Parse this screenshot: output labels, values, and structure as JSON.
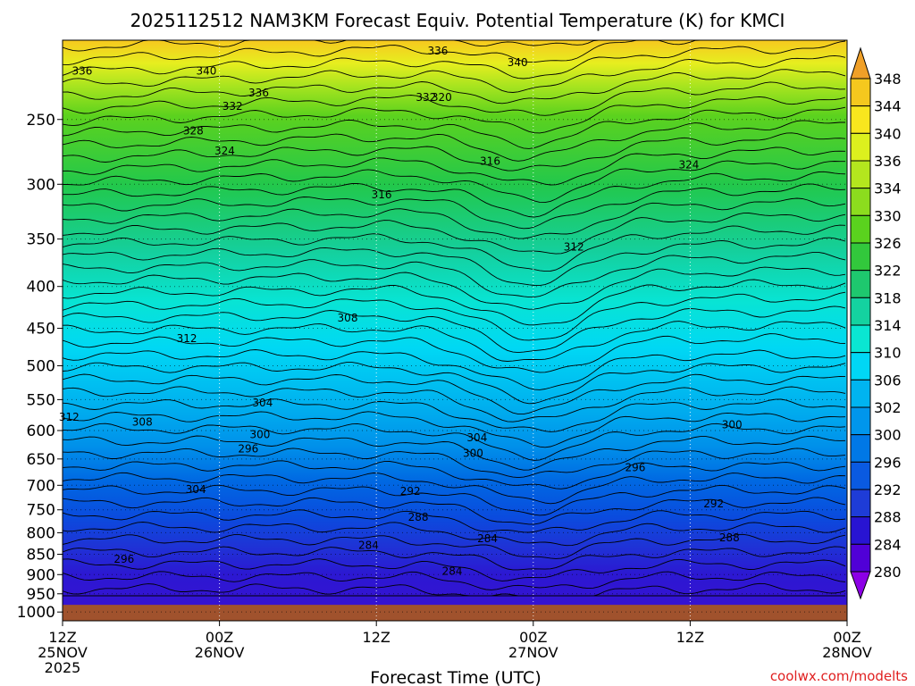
{
  "chart_data": {
    "type": "heatmap",
    "title": "2025112512 NAM3KM Forecast Equiv. Potential Temperature (K) for KMCI",
    "xlabel": "Forecast Time (UTC)",
    "ylabel": "",
    "x_ticks": [
      {
        "hour": 0,
        "lines": [
          "12Z",
          "25NOV",
          "2025"
        ]
      },
      {
        "hour": 12,
        "lines": [
          "00Z",
          "26NOV"
        ]
      },
      {
        "hour": 24,
        "lines": [
          "12Z"
        ]
      },
      {
        "hour": 36,
        "lines": [
          "00Z",
          "27NOV"
        ]
      },
      {
        "hour": 48,
        "lines": [
          "12Z"
        ]
      },
      {
        "hour": 60,
        "lines": [
          "00Z",
          "28NOV"
        ]
      }
    ],
    "xlim": [
      0,
      60
    ],
    "y_ticks": [
      250,
      300,
      350,
      400,
      450,
      500,
      550,
      600,
      650,
      700,
      750,
      800,
      850,
      900,
      950,
      1000
    ],
    "ylim": [
      1025,
      200
    ],
    "ylog": true,
    "grid": true,
    "colorbar": {
      "labels": [
        348,
        344,
        340,
        336,
        334,
        330,
        326,
        322,
        318,
        314,
        310,
        306,
        302,
        300,
        296,
        292,
        288,
        284,
        280
      ],
      "colors": [
        "#f0a028",
        "#f5c81e",
        "#f8e61e",
        "#dcf01e",
        "#b4e61e",
        "#8cdc1e",
        "#5ad21e",
        "#32c83c",
        "#1ec86e",
        "#14d2a0",
        "#0ae6d2",
        "#00d7f5",
        "#00b4f0",
        "#0096ec",
        "#0078e6",
        "#0a5ae1",
        "#1e3cd7",
        "#2814d2",
        "#5000d7",
        "#8c00e6"
      ]
    },
    "contour_labels": [
      {
        "t": 1.5,
        "p": 218,
        "v": "336"
      },
      {
        "t": 11,
        "p": 218,
        "v": "340"
      },
      {
        "t": 15,
        "p": 232,
        "v": "336"
      },
      {
        "t": 13,
        "p": 241,
        "v": "332"
      },
      {
        "t": 10,
        "p": 258,
        "v": "328"
      },
      {
        "t": 12.4,
        "p": 273,
        "v": "324"
      },
      {
        "t": 29,
        "p": 235,
        "v": "320"
      },
      {
        "t": 27.8,
        "p": 235,
        "v": "332"
      },
      {
        "t": 28.7,
        "p": 206,
        "v": "336"
      },
      {
        "t": 34.8,
        "p": 213,
        "v": "340"
      },
      {
        "t": 24.4,
        "p": 309,
        "v": "316"
      },
      {
        "t": 32.7,
        "p": 281,
        "v": "316"
      },
      {
        "t": 47.9,
        "p": 284,
        "v": "324"
      },
      {
        "t": 39.1,
        "p": 358,
        "v": "312"
      },
      {
        "t": 9.5,
        "p": 463,
        "v": "312"
      },
      {
        "t": 21.8,
        "p": 437,
        "v": "308"
      },
      {
        "t": 0.5,
        "p": 578,
        "v": "312"
      },
      {
        "t": 6.1,
        "p": 586,
        "v": "308"
      },
      {
        "t": 15.3,
        "p": 555,
        "v": "304"
      },
      {
        "t": 15.1,
        "p": 607,
        "v": "300"
      },
      {
        "t": 14.2,
        "p": 632,
        "v": "296"
      },
      {
        "t": 31.7,
        "p": 612,
        "v": "304"
      },
      {
        "t": 31.4,
        "p": 640,
        "v": "300"
      },
      {
        "t": 43.8,
        "p": 666,
        "v": "296"
      },
      {
        "t": 51.2,
        "p": 590,
        "v": "300"
      },
      {
        "t": 49.8,
        "p": 737,
        "v": "292"
      },
      {
        "t": 26.6,
        "p": 712,
        "v": "292"
      },
      {
        "t": 27.2,
        "p": 766,
        "v": "288"
      },
      {
        "t": 10.2,
        "p": 708,
        "v": "304"
      },
      {
        "t": 4.7,
        "p": 862,
        "v": "296"
      },
      {
        "t": 23.4,
        "p": 829,
        "v": "284"
      },
      {
        "t": 32.5,
        "p": 813,
        "v": "284"
      },
      {
        "t": 51,
        "p": 811,
        "v": "288"
      },
      {
        "t": 29.8,
        "p": 892,
        "v": "284"
      }
    ],
    "ground_top_p": 980
  },
  "credit": "coolwx.com/modelts"
}
